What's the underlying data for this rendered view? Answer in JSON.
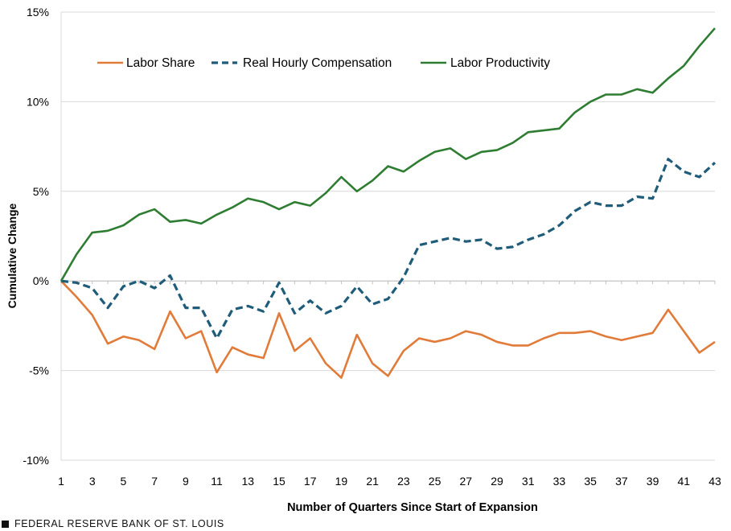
{
  "footer": {
    "source": "FEDERAL RESERVE BANK OF ST. LOUIS"
  },
  "colors": {
    "labor_share": "#E07B39",
    "real_hourly_compensation": "#1F5C7A",
    "labor_productivity": "#2E7D32"
  },
  "chart_data": {
    "type": "line",
    "title": "",
    "xlabel": "Number of Quarters Since Start of Expansion",
    "ylabel": "Cumulative Change",
    "x": [
      1,
      2,
      3,
      4,
      5,
      6,
      7,
      8,
      9,
      10,
      11,
      12,
      13,
      14,
      15,
      16,
      17,
      18,
      19,
      20,
      21,
      22,
      23,
      24,
      25,
      26,
      27,
      28,
      29,
      30,
      31,
      32,
      33,
      34,
      35,
      36,
      37,
      38,
      39,
      40,
      41,
      42,
      43
    ],
    "x_tick_labels": [
      "1",
      "3",
      "5",
      "7",
      "9",
      "11",
      "13",
      "15",
      "17",
      "19",
      "21",
      "23",
      "25",
      "27",
      "29",
      "31",
      "33",
      "35",
      "37",
      "39",
      "41",
      "43"
    ],
    "ylim": [
      -10,
      15
    ],
    "y_ticks": [
      -10,
      -5,
      0,
      5,
      10,
      15
    ],
    "y_tick_labels": [
      "-10%",
      "-5%",
      "0%",
      "5%",
      "10%",
      "15%"
    ],
    "legend_position": "top-left",
    "series": [
      {
        "name": "Labor Share",
        "style": "solid",
        "color": "#E07B39",
        "values": [
          0,
          -0.9,
          -1.9,
          -3.5,
          -3.1,
          -3.3,
          -3.8,
          -1.7,
          -3.2,
          -2.8,
          -5.1,
          -3.7,
          -4.1,
          -4.3,
          -1.8,
          -3.9,
          -3.2,
          -4.6,
          -5.4,
          -3.0,
          -4.6,
          -5.3,
          -3.9,
          -3.2,
          -3.4,
          -3.2,
          -2.8,
          -3.0,
          -3.4,
          -3.6,
          -3.6,
          -3.2,
          -2.9,
          -2.9,
          -2.8,
          -3.1,
          -3.3,
          -3.1,
          -2.9,
          -1.6,
          -2.8,
          -4.0,
          -3.4
        ]
      },
      {
        "name": "Real Hourly Compensation",
        "style": "dashed",
        "color": "#1F5C7A",
        "values": [
          0,
          -0.1,
          -0.4,
          -1.5,
          -0.3,
          0.0,
          -0.4,
          0.3,
          -1.5,
          -1.5,
          -3.2,
          -1.6,
          -1.4,
          -1.7,
          -0.1,
          -1.8,
          -1.1,
          -1.8,
          -1.4,
          -0.3,
          -1.3,
          -1.0,
          0.2,
          2.0,
          2.2,
          2.4,
          2.2,
          2.3,
          1.8,
          1.9,
          2.3,
          2.6,
          3.1,
          3.9,
          4.4,
          4.2,
          4.2,
          4.7,
          4.6,
          6.8,
          6.1,
          5.8,
          6.6
        ]
      },
      {
        "name": "Labor Productivity",
        "style": "solid",
        "color": "#2E7D32",
        "values": [
          0,
          1.5,
          2.7,
          2.8,
          3.1,
          3.7,
          4.0,
          3.3,
          3.4,
          3.2,
          3.7,
          4.1,
          4.6,
          4.4,
          4.0,
          4.4,
          4.2,
          4.9,
          5.8,
          5.0,
          5.6,
          6.4,
          6.1,
          6.7,
          7.2,
          7.4,
          6.8,
          7.2,
          7.3,
          7.7,
          8.3,
          8.4,
          8.5,
          9.4,
          10.0,
          10.4,
          10.4,
          10.7,
          10.5,
          11.3,
          12.0,
          13.1,
          14.1
        ]
      }
    ]
  }
}
